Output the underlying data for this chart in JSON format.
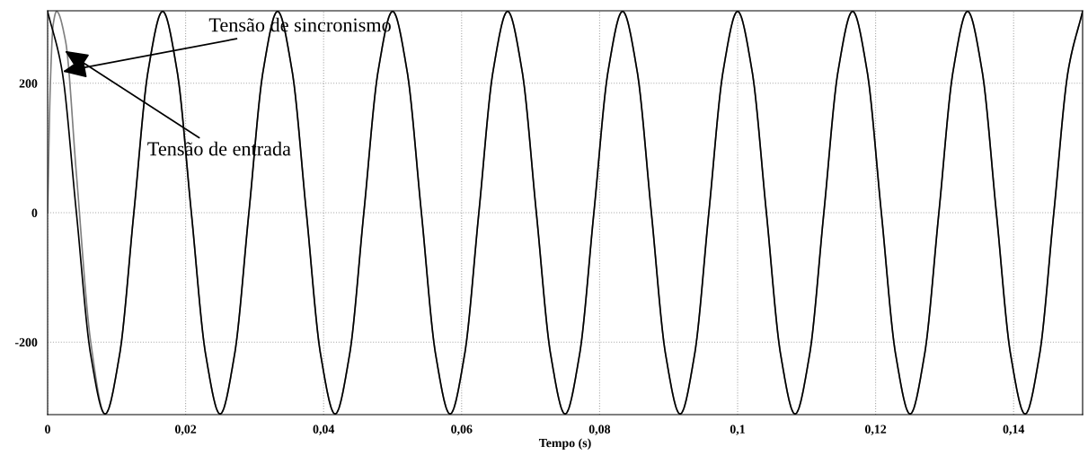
{
  "chart_data": {
    "type": "line",
    "xlabel": "Tempo (s)",
    "xlim": [
      0,
      0.15
    ],
    "ylim": [
      -312,
      312
    ],
    "xticks": [
      0,
      {
        "value": 0.02,
        "label": "0,02"
      },
      {
        "value": 0.04,
        "label": "0,04"
      },
      {
        "value": 0.06,
        "label": "0,06"
      },
      {
        "value": 0.08,
        "label": "0,08"
      },
      {
        "value": 0.1,
        "label": "0,1"
      },
      {
        "value": 0.12,
        "label": "0,12"
      },
      {
        "value": 0.14,
        "label": "0,14"
      }
    ],
    "yticks": [
      -200,
      0,
      200
    ],
    "grid": true,
    "legend": false,
    "marker": "none",
    "line_style": "solid",
    "series": [
      {
        "color": "#808080",
        "x": [
          0,
          0.0004,
          0.0008,
          0.0013,
          0.0026,
          0.00417,
          0.00625,
          0.00833,
          0.01042,
          0.0125,
          0.01458,
          0.01667,
          0.01875,
          0.02083,
          0.02292,
          0.025,
          0.02708,
          0.02917,
          0.03125,
          0.03333,
          0.03542,
          0.0375,
          0.03958,
          0.04167,
          0.04375,
          0.04583,
          0.04792,
          0.05,
          0.05208,
          0.05417,
          0.05625,
          0.05833,
          0.06042,
          0.0625,
          0.06458,
          0.06667,
          0.06875,
          0.07083,
          0.07292,
          0.075,
          0.07708,
          0.07917,
          0.08125,
          0.08333,
          0.08542,
          0.0875,
          0.08958,
          0.09167,
          0.09375,
          0.09583,
          0.09792,
          0.1,
          0.10208,
          0.10417,
          0.10625,
          0.10833,
          0.11042,
          0.1125,
          0.11458,
          0.11667,
          0.11875,
          0.12083,
          0.12292,
          0.125,
          0.12708,
          0.12917,
          0.13125,
          0.13333,
          0.13542,
          0.1375,
          0.13958,
          0.14167,
          0.14375,
          0.14583,
          0.14792,
          0.15
        ],
        "values": [
          0,
          200,
          290,
          311,
          265,
          60,
          -200,
          -311,
          -220,
          0,
          220,
          311,
          220,
          0,
          -220,
          -311,
          -220,
          0,
          220,
          311,
          220,
          0,
          -220,
          -311,
          -220,
          0,
          220,
          311,
          220,
          0,
          -220,
          -311,
          -220,
          0,
          220,
          311,
          220,
          0,
          -220,
          -311,
          -220,
          0,
          220,
          311,
          220,
          0,
          -220,
          -311,
          -220,
          0,
          220,
          311,
          220,
          0,
          -220,
          -311,
          -220,
          0,
          220,
          311,
          220,
          0,
          -220,
          -311,
          -220,
          0,
          220,
          311,
          220,
          0,
          -220,
          -311,
          -220,
          0,
          220,
          311
        ]
      },
      {
        "color": "#000000",
        "x": [
          0,
          0.00208,
          0.00417,
          0.00625,
          0.00833,
          0.01042,
          0.0125,
          0.01458,
          0.01667,
          0.01875,
          0.02083,
          0.02292,
          0.025,
          0.02708,
          0.02917,
          0.03125,
          0.03333,
          0.03542,
          0.0375,
          0.03958,
          0.04167,
          0.04375,
          0.04583,
          0.04792,
          0.05,
          0.05208,
          0.05417,
          0.05625,
          0.05833,
          0.06042,
          0.0625,
          0.06458,
          0.06667,
          0.06875,
          0.07083,
          0.07292,
          0.075,
          0.07708,
          0.07917,
          0.08125,
          0.08333,
          0.08542,
          0.0875,
          0.08958,
          0.09167,
          0.09375,
          0.09583,
          0.09792,
          0.1,
          0.10208,
          0.10417,
          0.10625,
          0.10833,
          0.11042,
          0.1125,
          0.11458,
          0.11667,
          0.11875,
          0.12083,
          0.12292,
          0.125,
          0.12708,
          0.12917,
          0.13125,
          0.13333,
          0.13542,
          0.1375,
          0.13958,
          0.14167,
          0.14375,
          0.14583,
          0.14792,
          0.15
        ],
        "values": [
          311,
          220,
          0,
          -220,
          -311,
          -220,
          0,
          220,
          311,
          220,
          0,
          -220,
          -311,
          -220,
          0,
          220,
          311,
          220,
          0,
          -220,
          -311,
          -220,
          0,
          220,
          311,
          220,
          0,
          -220,
          -311,
          -220,
          0,
          220,
          311,
          220,
          0,
          -220,
          -311,
          -220,
          0,
          220,
          311,
          220,
          0,
          -220,
          -311,
          -220,
          0,
          220,
          311,
          220,
          0,
          -220,
          -311,
          -220,
          0,
          220,
          311,
          220,
          0,
          -220,
          -311,
          -220,
          0,
          220,
          311,
          220,
          0,
          -220,
          -311,
          -220,
          0,
          220,
          311
        ]
      }
    ],
    "annotations": [
      {
        "text": "Tensão de sincronismo",
        "x": 0.0022,
        "y": 218
      },
      {
        "text": "Tensão de entrada",
        "x": 0.0025,
        "y": 250
      }
    ]
  }
}
